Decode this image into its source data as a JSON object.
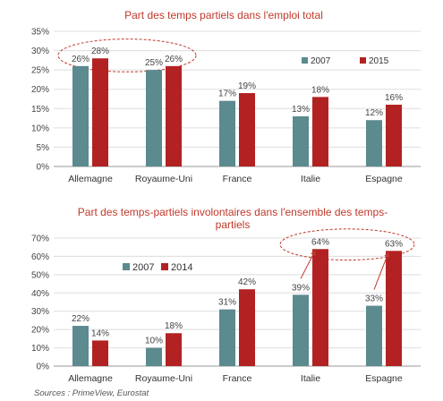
{
  "colors": {
    "series_2007": "#5b8a8f",
    "series_recent": "#b22222",
    "title": "#c0392b",
    "highlight": "#c0392b"
  },
  "source": "Sources : PrimeView, Eurostat",
  "chart_data": [
    {
      "type": "bar",
      "title": "Part des temps partiels dans l'emploi total",
      "categories": [
        "Allemagne",
        "Royaume-Uni",
        "France",
        "Italie",
        "Espagne"
      ],
      "series": [
        {
          "name": "2007",
          "values": [
            26,
            25,
            17,
            13,
            12
          ],
          "labels": [
            "26%",
            "25%",
            "17%",
            "13%",
            "12%"
          ]
        },
        {
          "name": "2015",
          "values": [
            28,
            26,
            19,
            18,
            16
          ],
          "labels": [
            "28%",
            "26%",
            "19%",
            "18%",
            "16%"
          ]
        }
      ],
      "ylim": [
        0,
        35
      ],
      "yticks": [
        "0%",
        "5%",
        "10%",
        "15%",
        "20%",
        "25%",
        "30%",
        "35%"
      ],
      "legend": "top-right",
      "highlight": [
        "Allemagne",
        "Royaume-Uni"
      ]
    },
    {
      "type": "bar",
      "title": "Part des temps-partiels involontaires dans l'ensemble des temps-partiels",
      "title_lines": [
        "Part des temps-partiels involontaires dans l'ensemble des temps-",
        "partiels"
      ],
      "categories": [
        "Allemagne",
        "Royaume-Uni",
        "France",
        "Italie",
        "Espagne"
      ],
      "series": [
        {
          "name": "2007",
          "values": [
            22,
            10,
            31,
            39,
            33
          ],
          "labels": [
            "22%",
            "10%",
            "31%",
            "39%",
            "33%"
          ]
        },
        {
          "name": "2014",
          "values": [
            14,
            18,
            42,
            64,
            63
          ],
          "labels": [
            "14%",
            "18%",
            "42%",
            "64%",
            "63%"
          ]
        }
      ],
      "ylim": [
        0,
        70
      ],
      "yticks": [
        "0%",
        "10%",
        "20%",
        "30%",
        "40%",
        "50%",
        "60%",
        "70%"
      ],
      "legend": "top-left",
      "highlight": [
        "Italie",
        "Espagne"
      ]
    }
  ]
}
